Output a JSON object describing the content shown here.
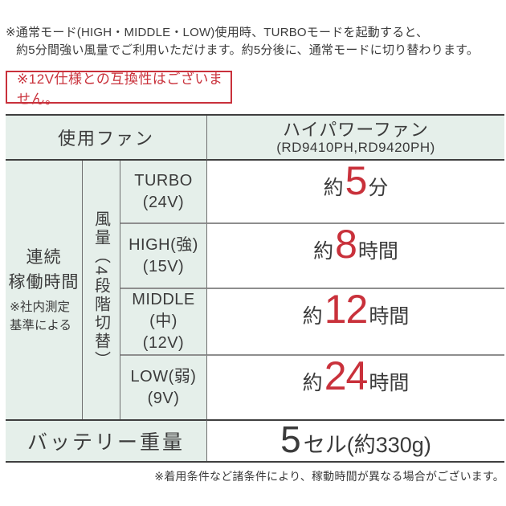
{
  "colors": {
    "mint": "#e5efea",
    "red": "#c9313b",
    "line_dark": "#3f3f3f",
    "line_gray": "#8e8e8e",
    "text": "#3b3b3b"
  },
  "top_note": {
    "line1": "※通常モード(HIGH・MIDDLE・LOW)使用時、TURBOモードを起動すると、",
    "line2": "約5分間強い風量でご利用いただけます。約5分後に、通常モードに切り替わります。"
  },
  "warning_box": {
    "text": "※12V仕様との互換性はございません。"
  },
  "spec_table": {
    "header": {
      "left": "使用ファン",
      "fan_name": "ハイパワーファン",
      "fan_models": "(RD9410PH,RD9420PH)"
    },
    "runtime_label": {
      "main": [
        "連続",
        "稼働時間"
      ],
      "note": [
        "※社内測定",
        "基準による"
      ]
    },
    "airflow_label": "風量（4段階切替）",
    "modes": [
      {
        "name": [
          "TURBO",
          "(24V)"
        ],
        "prefix": "約",
        "value": "5",
        "unit": "分"
      },
      {
        "name": [
          "HIGH(強)",
          "(15V)"
        ],
        "prefix": "約",
        "value": "8",
        "unit": "時間"
      },
      {
        "name": [
          "MIDDLE",
          "(中)",
          "(12V)"
        ],
        "prefix": "約",
        "value": "12",
        "unit": "時間"
      },
      {
        "name": [
          "LOW(弱)",
          "(9V)"
        ],
        "prefix": "約",
        "value": "24",
        "unit": "時間"
      }
    ],
    "battery": {
      "label": "バッテリー重量",
      "value_number": "5",
      "value_text": "セル(約330g)"
    }
  },
  "footer_note": "※着用条件など諸条件により、稼動時間が異なる場合がございます。"
}
